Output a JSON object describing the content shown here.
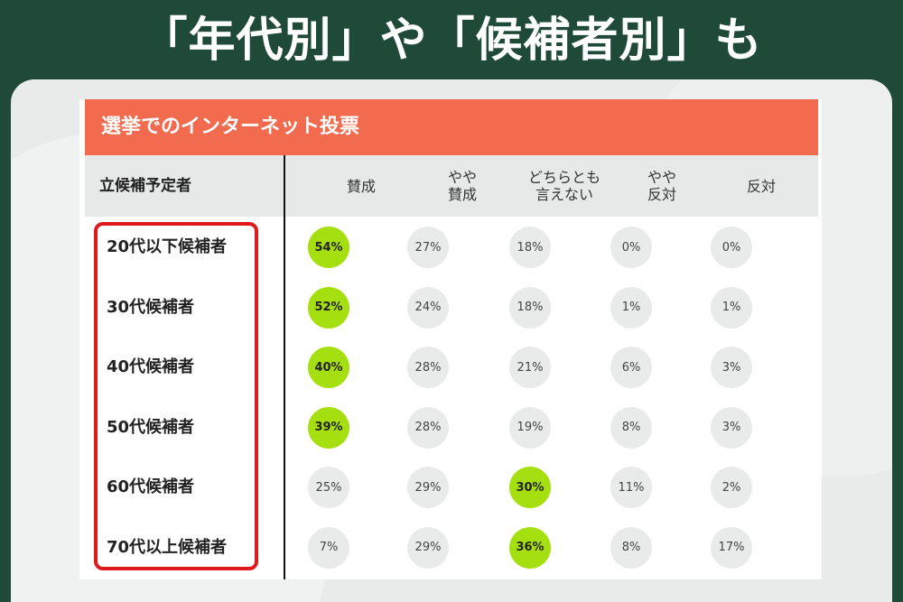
{
  "slide_title": "「年代別」や「候補者別」も",
  "card_title": "選挙でのインターネット投票",
  "columns": {
    "first": "立候補予定者",
    "c1": "賛成",
    "c2": "やや\n賛成",
    "c3": "どちらとも\n言えない",
    "c4": "やや\n反対",
    "c5": "反対"
  },
  "rows": [
    {
      "label": "20代以下候補者",
      "values": [
        "54%",
        "27%",
        "18%",
        "0%",
        "0%"
      ],
      "highlight": 0
    },
    {
      "label": "30代候補者",
      "values": [
        "52%",
        "24%",
        "18%",
        "1%",
        "1%"
      ],
      "highlight": 0
    },
    {
      "label": "40代候補者",
      "values": [
        "40%",
        "28%",
        "21%",
        "6%",
        "3%"
      ],
      "highlight": 0
    },
    {
      "label": "50代候補者",
      "values": [
        "39%",
        "28%",
        "19%",
        "8%",
        "3%"
      ],
      "highlight": 0
    },
    {
      "label": "60代候補者",
      "values": [
        "25%",
        "29%",
        "30%",
        "11%",
        "2%"
      ],
      "highlight": 2
    },
    {
      "label": "70代以上候補者",
      "values": [
        "7%",
        "29%",
        "36%",
        "8%",
        "17%"
      ],
      "highlight": 2
    }
  ],
  "colors": {
    "background": "#1f4a38",
    "header": "#f26b4f",
    "highlight_cell": "#a6df10",
    "annotation_box": "#e01a1a"
  }
}
